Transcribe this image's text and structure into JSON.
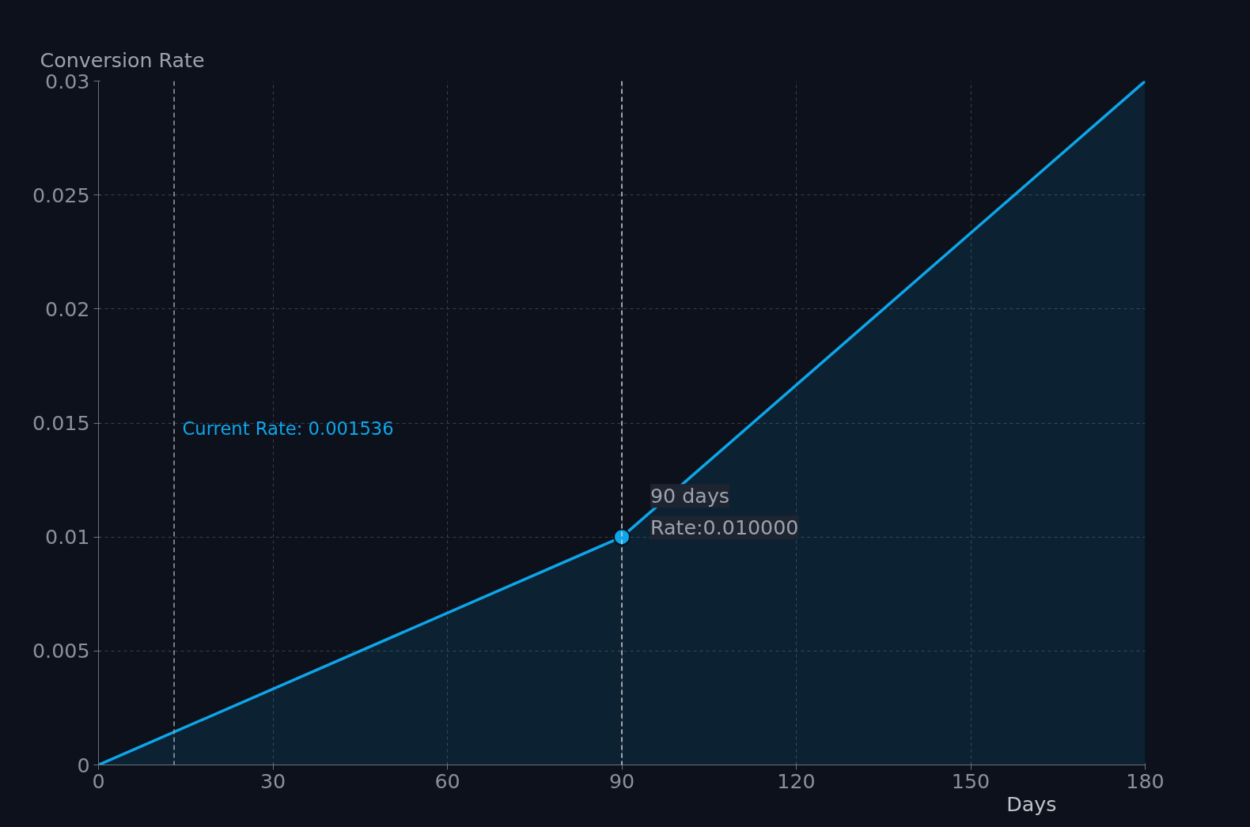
{
  "chart_data": {
    "type": "area",
    "ylabel": "Conversion Rate",
    "xlabel": "Days",
    "x": [
      0,
      90,
      180
    ],
    "series": [
      {
        "color": "#0ea5e9",
        "values": [
          0,
          0.01,
          0.03
        ]
      },
      {
        "type": "scatter",
        "color": "#0ea5e9",
        "x": [
          90
        ],
        "values": [
          0.01
        ]
      }
    ],
    "xlim": [
      0,
      180
    ],
    "xticks": [
      0,
      30,
      60,
      90,
      120,
      150,
      180
    ],
    "ylim": [
      0,
      0.03
    ],
    "yticks": [
      0,
      0.005,
      0.01,
      0.015,
      0.02,
      0.025,
      0.03
    ],
    "grid": true,
    "line_style": "solid",
    "ref_lines": [
      {
        "axis": "x",
        "value": 13,
        "color": "#9ca3af",
        "line_style": "dashed"
      },
      {
        "axis": "x",
        "value": 90,
        "color": "#d1d5db",
        "line_style": "dashed"
      }
    ],
    "annotations": [
      "Current Rate: 0.001536",
      {
        "text": "90 days",
        "x": 90,
        "y": 0.01
      },
      {
        "text": "Rate:0.010000",
        "x": 90,
        "y": 0.01
      }
    ]
  }
}
